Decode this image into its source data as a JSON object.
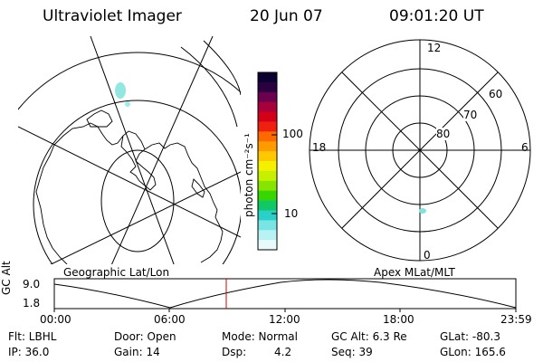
{
  "header": {
    "title": "Ultraviolet Imager",
    "date": "20 Jun 07",
    "time": "09:01:20 UT"
  },
  "colorbar": {
    "label": "photon cm⁻²s⁻¹",
    "ticks": [
      "100",
      "10"
    ],
    "colors": [
      "#0b0030",
      "#2a0040",
      "#6a004e",
      "#a8003a",
      "#d20018",
      "#f02010",
      "#ff6a00",
      "#ff9a00",
      "#ffc800",
      "#f4f000",
      "#c6f000",
      "#86e400",
      "#38d600",
      "#10c866",
      "#28d0c8",
      "#78e4e4",
      "#b8f2f2",
      "#e8fafa"
    ]
  },
  "left_map": {
    "caption": "Geographic Lat/Lon"
  },
  "right_map": {
    "caption": "Apex MLat/MLT",
    "hour_labels": {
      "top": "12",
      "left": "18",
      "right": "6",
      "bottom": "0"
    },
    "lat_labels": [
      "60",
      "70",
      "80"
    ]
  },
  "timeline": {
    "ylabel": "GC Alt",
    "y_ticks": [
      "9.0",
      "1.8"
    ],
    "x_ticks": [
      "00:00",
      "06:00",
      "12:00",
      "18:00",
      "23:59"
    ],
    "marker_time": "09:01"
  },
  "info": {
    "filter": "Flt: LBHL",
    "ip": "IP: 36.0",
    "door": "Door: Open",
    "gain": "Gain: 14",
    "mode": "Mode: Normal",
    "dsp_label": "Dsp:",
    "dsp_value": "4.2",
    "gc_alt": "GC Alt: 6.3 Re",
    "seq": "Seq: 39",
    "glat": "GLat: -80.3",
    "glon": "GLon: 165.6"
  }
}
